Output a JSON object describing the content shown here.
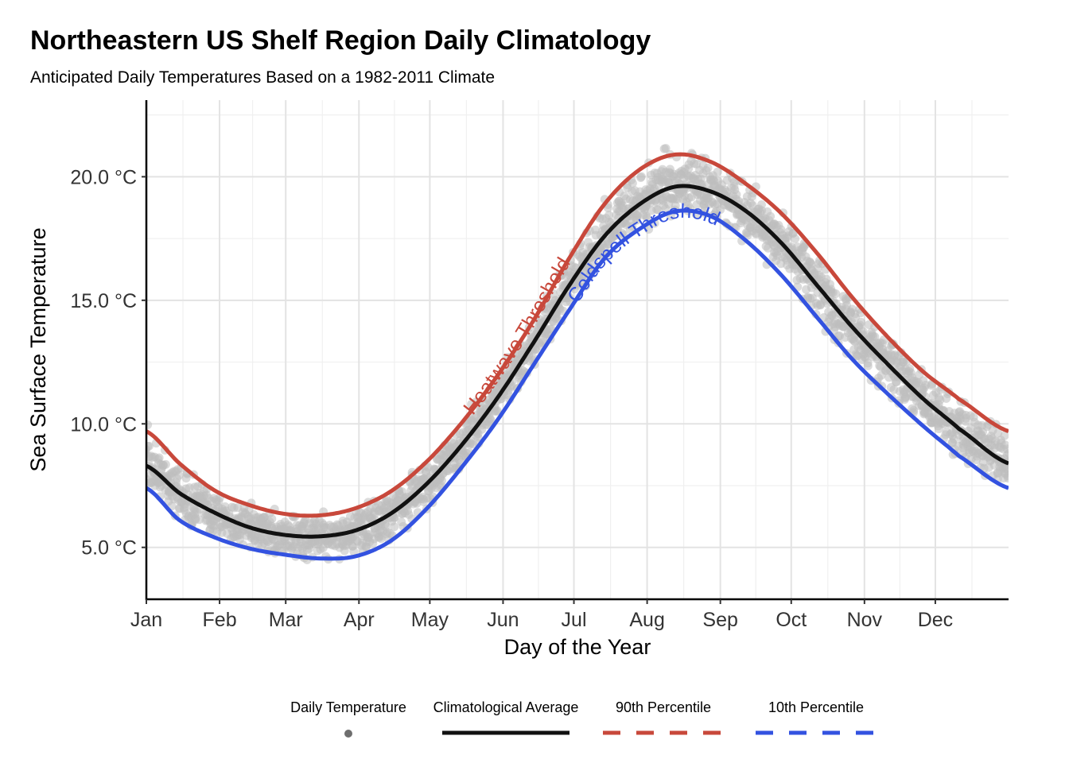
{
  "chart_data": {
    "type": "line",
    "title": "Northeastern US Shelf Region Daily Climatology",
    "subtitle": "Anticipated Daily Temperatures Based on a 1982-2011 Climate",
    "xlabel": "Day of the Year",
    "ylabel": "Sea Surface Temperature",
    "x_ticks": [
      {
        "day": 1,
        "label": "Jan"
      },
      {
        "day": 32,
        "label": "Feb"
      },
      {
        "day": 60,
        "label": "Mar"
      },
      {
        "day": 91,
        "label": "Apr"
      },
      {
        "day": 121,
        "label": "May"
      },
      {
        "day": 152,
        "label": "Jun"
      },
      {
        "day": 182,
        "label": "Jul"
      },
      {
        "day": 213,
        "label": "Aug"
      },
      {
        "day": 244,
        "label": "Sep"
      },
      {
        "day": 274,
        "label": "Oct"
      },
      {
        "day": 305,
        "label": "Nov"
      },
      {
        "day": 335,
        "label": "Dec"
      }
    ],
    "y_ticks": [
      {
        "value": 5,
        "label": "5.0 °C"
      },
      {
        "value": 10,
        "label": "10.0 °C"
      },
      {
        "value": 15,
        "label": "15.0 °C"
      },
      {
        "value": 20,
        "label": "20.0 °C"
      }
    ],
    "xlim": [
      1,
      366
    ],
    "ylim": [
      2.9,
      23.1
    ],
    "grid": true,
    "legend_position": "bottom",
    "x": [
      1,
      15,
      30,
      45,
      60,
      75,
      90,
      105,
      120,
      135,
      150,
      165,
      180,
      195,
      210,
      225,
      240,
      255,
      270,
      285,
      300,
      315,
      330,
      345,
      366
    ],
    "series": [
      {
        "name": "Climatological Average",
        "color": "#111111",
        "style": "solid",
        "values": [
          8.3,
          7.2,
          6.4,
          5.8,
          5.5,
          5.45,
          5.7,
          6.4,
          7.6,
          9.2,
          11.1,
          13.3,
          15.6,
          17.6,
          18.9,
          19.6,
          19.4,
          18.6,
          17.3,
          15.6,
          13.9,
          12.4,
          11.0,
          9.8,
          8.4
        ]
      },
      {
        "name": "90th Percentile",
        "color": "#c8483b",
        "style": "dashed",
        "values": [
          9.7,
          8.4,
          7.3,
          6.7,
          6.35,
          6.3,
          6.6,
          7.3,
          8.5,
          10.1,
          12.0,
          14.2,
          16.7,
          18.9,
          20.3,
          20.9,
          20.6,
          19.7,
          18.5,
          16.9,
          15.1,
          13.5,
          12.1,
          11.0,
          9.7
        ]
      },
      {
        "name": "10th Percentile",
        "color": "#3352e0",
        "style": "dashed",
        "values": [
          7.4,
          6.1,
          5.4,
          4.95,
          4.7,
          4.55,
          4.65,
          5.3,
          6.6,
          8.3,
          10.2,
          12.4,
          14.6,
          16.7,
          17.9,
          18.6,
          18.4,
          17.4,
          16.0,
          14.3,
          12.6,
          11.2,
          9.9,
          8.7,
          7.4
        ]
      }
    ],
    "scatter_series": {
      "name": "Daily Temperature",
      "color": "#bdbdbd",
      "spread_note": "points scattered around the average between roughly the 10th and 90th percentile"
    },
    "annotations": [
      {
        "text": "Heatwave Threshold",
        "color": "#c8483b"
      },
      {
        "text": "Coldspell Threshold",
        "color": "#3352e0"
      }
    ],
    "legend": {
      "entries": [
        {
          "label": "Daily Temperature",
          "symbol": "point",
          "color": "#6e6e6e"
        },
        {
          "label": "Climatological Average",
          "symbol": "solid-line",
          "color": "#111111"
        },
        {
          "label": "90th Percentile",
          "symbol": "dashed-line",
          "color": "#c8483b"
        },
        {
          "label": "10th Percentile",
          "symbol": "dashed-line",
          "color": "#3352e0"
        }
      ]
    }
  }
}
